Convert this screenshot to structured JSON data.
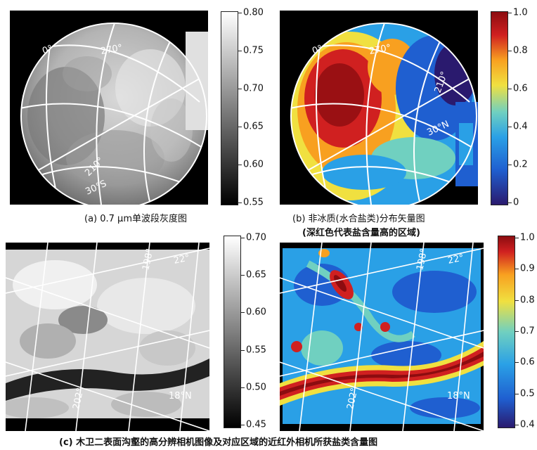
{
  "panels": {
    "a": {
      "caption": "(a) 0.7 μm单波段灰度图",
      "grid_labels": {
        "lon_0": "0°",
        "lon_270": "270°",
        "lon_210": "210°",
        "lat_30s": "30°S"
      },
      "colorbar_ticks": [
        "0.80",
        "0.75",
        "0.70",
        "0.65",
        "0.60",
        "0.55"
      ]
    },
    "b": {
      "caption_line1": "(b) 非冰质(水合盐类)分布矢量图",
      "caption_line2": "(深红色代表盐含量高的区域)",
      "grid_labels": {
        "lon_0": "0°",
        "lon_270": "270°",
        "lon_210": "210°",
        "lat_30n": "30°N"
      },
      "colorbar_ticks": [
        "1.0",
        "0.8",
        "0.6",
        "0.4",
        "0.2",
        "0"
      ]
    },
    "c_left": {
      "grid_labels": {
        "lon_198": "198°",
        "lat_22": "22°",
        "lon_202": "202°",
        "lat_18n": "18°N"
      },
      "colorbar_ticks": [
        "0.70",
        "0.65",
        "0.60",
        "0.55",
        "0.50",
        "0.45"
      ]
    },
    "c_right": {
      "grid_labels": {
        "lon_198": "198°",
        "lat_22": "22°",
        "lon_202": "202°",
        "lat_18n": "18°N"
      },
      "colorbar_ticks": [
        "1.0",
        "0.9",
        "0.8",
        "0.7",
        "0.6",
        "0.5",
        "0.4"
      ]
    },
    "c_caption": "(c) 木卫二表面沟壑的高分辨相机图像及对应区域的近红外相机所获盐类含量图"
  },
  "colors": {
    "jet": [
      "#2a1a6e",
      "#1f5fd0",
      "#2aa0e6",
      "#70d0c0",
      "#f0e040",
      "#f8a020",
      "#d02020",
      "#8c0c10"
    ]
  }
}
